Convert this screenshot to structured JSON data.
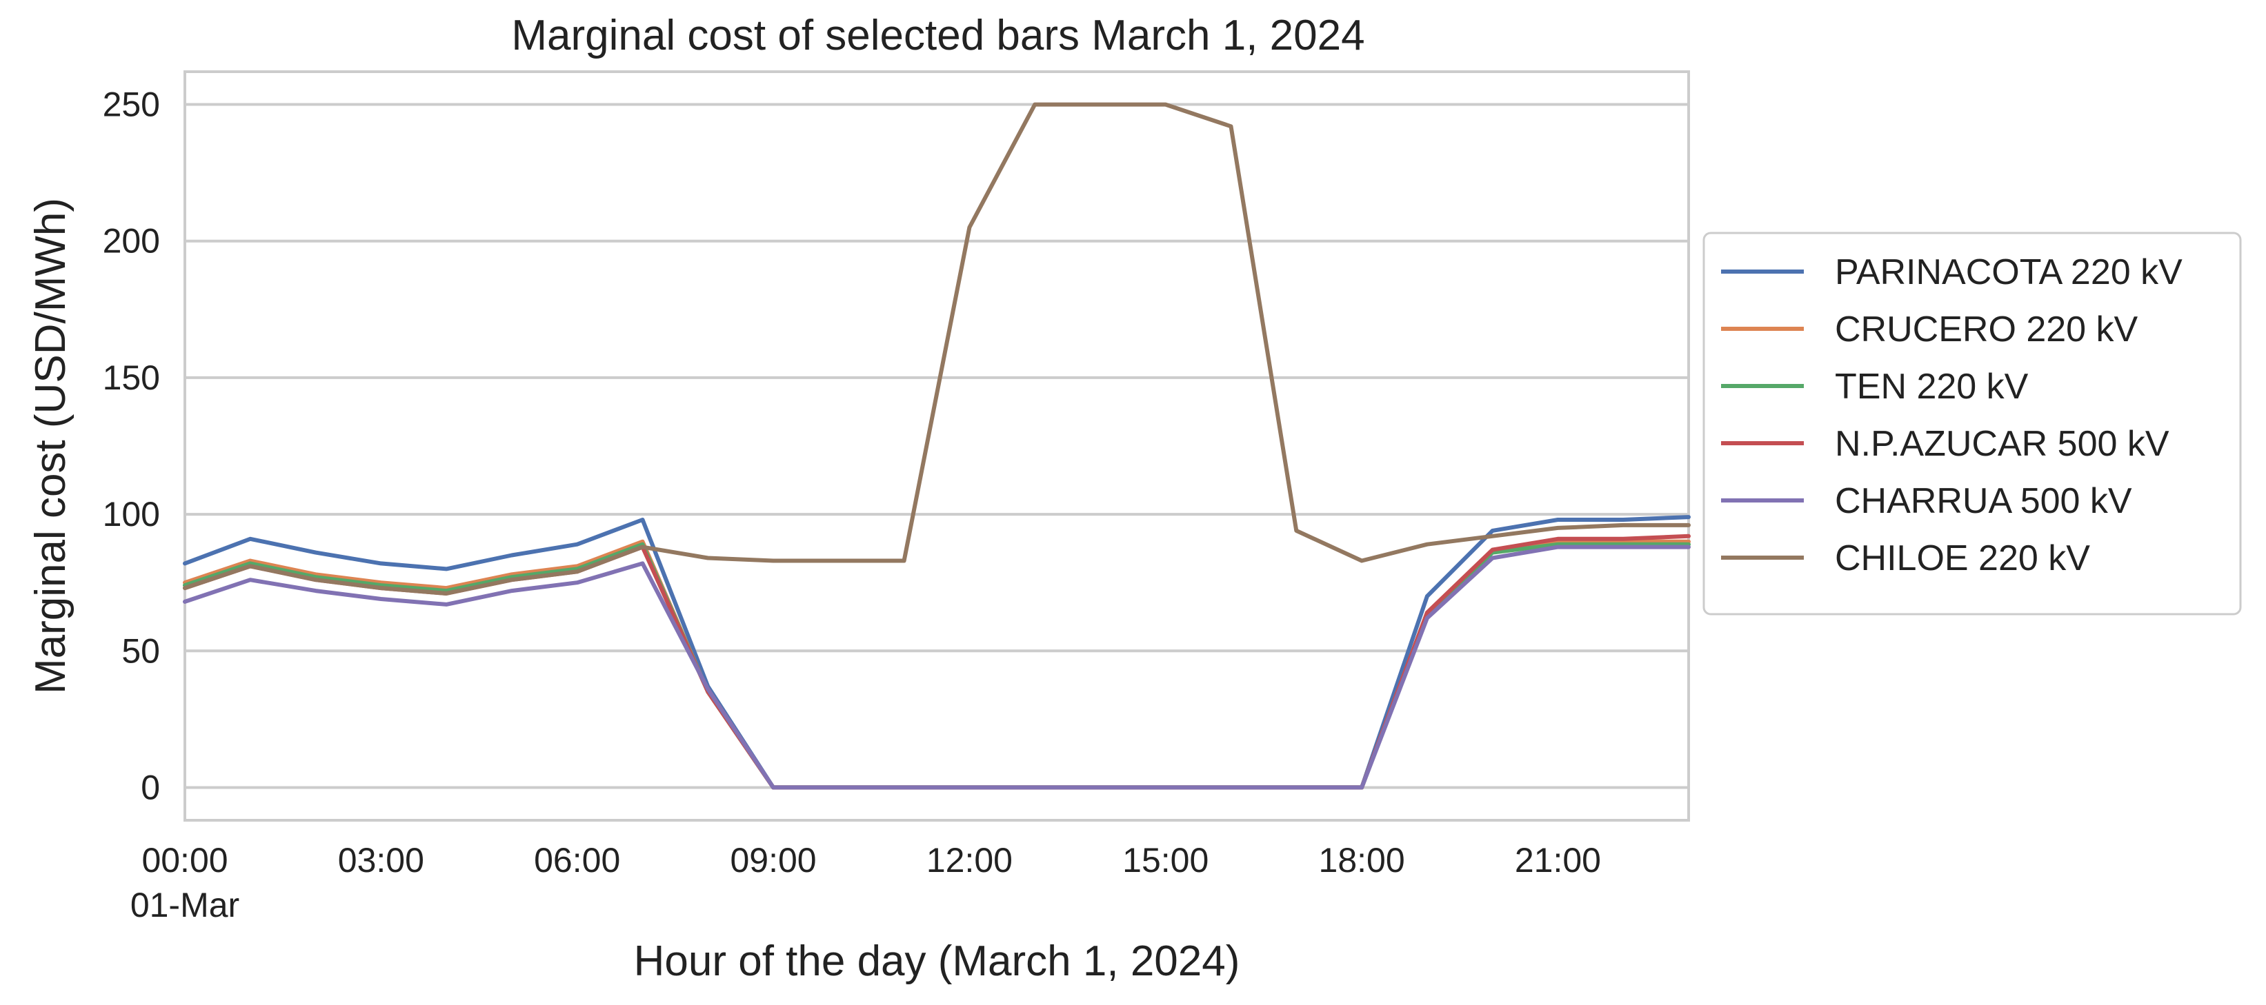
{
  "chart_data": {
    "type": "line",
    "title": "Marginal cost of selected bars March 1, 2024",
    "xlabel": "Hour of the day (March 1, 2024)",
    "ylabel": "Marginal cost (USD/MWh)",
    "x": [
      "00:00",
      "01:00",
      "02:00",
      "03:00",
      "04:00",
      "05:00",
      "06:00",
      "07:00",
      "08:00",
      "09:00",
      "10:00",
      "11:00",
      "12:00",
      "13:00",
      "14:00",
      "15:00",
      "16:00",
      "17:00",
      "18:00",
      "19:00",
      "20:00",
      "21:00",
      "22:00",
      "23:00"
    ],
    "x_range": [
      "00:00",
      "23:00"
    ],
    "x_ticks": [
      {
        "x": "00:00",
        "label": "00:00",
        "sublabel": "01-Mar"
      },
      {
        "x": "03:00",
        "label": "03:00"
      },
      {
        "x": "06:00",
        "label": "06:00"
      },
      {
        "x": "09:00",
        "label": "09:00"
      },
      {
        "x": "12:00",
        "label": "12:00"
      },
      {
        "x": "15:00",
        "label": "15:00"
      },
      {
        "x": "18:00",
        "label": "18:00"
      },
      {
        "x": "21:00",
        "label": "21:00"
      }
    ],
    "ylim": [
      -12,
      262
    ],
    "y_ticks": [
      0,
      50,
      100,
      150,
      200,
      250
    ],
    "grid": "horizontal",
    "legend_position": "outside right",
    "series": [
      {
        "name": "PARINACOTA 220 kV",
        "color": "#4c72b0",
        "values": [
          82,
          91,
          86,
          82,
          80,
          85,
          89,
          98,
          37,
          0,
          0,
          0,
          0,
          0,
          0,
          0,
          0,
          0,
          0,
          70,
          94,
          98,
          98,
          99
        ]
      },
      {
        "name": "CRUCERO 220 kV",
        "color": "#dd8452",
        "values": [
          75,
          83,
          78,
          75,
          73,
          78,
          81,
          90,
          35,
          0,
          0,
          0,
          0,
          0,
          0,
          0,
          0,
          0,
          0,
          64,
          87,
          90,
          90,
          90
        ]
      },
      {
        "name": "TEN 220 kV",
        "color": "#55a868",
        "values": [
          74,
          82,
          77,
          74,
          72,
          77,
          80,
          89,
          35,
          0,
          0,
          0,
          0,
          0,
          0,
          0,
          0,
          0,
          0,
          63,
          86,
          89,
          89,
          89
        ]
      },
      {
        "name": "N.P.AZUCAR 500 kV",
        "color": "#c44e52",
        "values": [
          73,
          81,
          76,
          73,
          71,
          76,
          79,
          88,
          35,
          0,
          0,
          0,
          0,
          0,
          0,
          0,
          0,
          0,
          0,
          64,
          87,
          91,
          91,
          92
        ]
      },
      {
        "name": "CHARRUA 500 kV",
        "color": "#8172b3",
        "values": [
          68,
          76,
          72,
          69,
          67,
          72,
          75,
          82,
          36,
          0,
          0,
          0,
          0,
          0,
          0,
          0,
          0,
          0,
          0,
          62,
          84,
          88,
          88,
          88
        ]
      },
      {
        "name": "CHILOE 220 kV",
        "color": "#937860",
        "values": [
          73,
          81,
          76,
          73,
          71,
          76,
          79,
          88,
          84,
          83,
          83,
          83,
          205,
          250,
          250,
          250,
          242,
          94,
          83,
          89,
          92,
          95,
          96,
          96
        ]
      }
    ]
  }
}
